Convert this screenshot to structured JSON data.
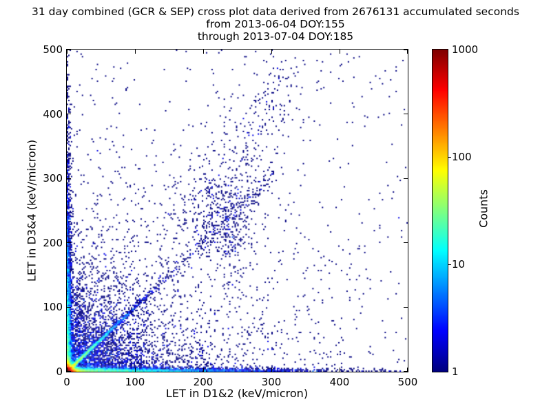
{
  "chart": {
    "title_lines": [
      "31 day combined (GCR & SEP) cross plot data derived from 2676131 accumulated seconds",
      "from 2013-06-04 DOY:155",
      "through 2013-07-04 DOY:185"
    ]
  },
  "chart_data": {
    "type": "heatmap",
    "subtype": "2d-histogram cross plot of coincident LET measurements, log-color scatter",
    "title": "31 day combined (GCR & SEP) cross plot data derived from 2676131 accumulated seconds",
    "subtitle_lines": [
      "from 2013-06-04 DOY:155",
      "through 2013-07-04 DOY:185"
    ],
    "xlabel": "LET in D1&2 (keV/micron)",
    "ylabel": "LET in D3&4 (keV/micron)",
    "xlim": [
      0,
      500
    ],
    "ylim": [
      0,
      500
    ],
    "x_ticks": [
      0,
      100,
      200,
      300,
      400,
      500
    ],
    "y_ticks": [
      0,
      100,
      200,
      300,
      400,
      500
    ],
    "grid": false,
    "tick_direction": "in",
    "colorbar": {
      "label": "Counts",
      "scale": "log",
      "range": [
        1,
        1000
      ],
      "ticks": [
        1000,
        100,
        10,
        1
      ],
      "colormap": "jet"
    },
    "stats_shown_in_title": {
      "span_days": 31,
      "accumulated_seconds": 2676131,
      "date_from": "2013-06-04",
      "doy_from": 155,
      "date_through": "2013-07-04",
      "doy_through": 185
    },
    "bin_size_kev_per_micron": 2,
    "render": {
      "seed": 20130604,
      "marker_px": 2
    },
    "density_components": [
      {
        "desc": "origin hotspot, counts up to ~1000 (dark red core fading through orange/yellow/green)",
        "type": "exp2d",
        "n": 12000,
        "mean_x": 3.5,
        "mean_y": 3.5
      },
      {
        "desc": "cyan y=x coincidence streak from origin to ~(60,60)",
        "type": "diag_exp",
        "n": 3000,
        "mean_t": 28,
        "sigma": 1.3
      },
      {
        "desc": "dense blue band hugging x-axis across full range",
        "type": "band_x",
        "n": 4500,
        "mean_x": 100,
        "sigma_y": 3
      },
      {
        "desc": "dense blue band hugging y-axis up to ~300",
        "type": "band_y",
        "n": 3500,
        "mean_y": 90,
        "sigma_x": 3
      },
      {
        "desc": "diffuse blue scatter filling lower-left region",
        "type": "exp2d",
        "n": 3200,
        "mean_x": 55,
        "mean_y": 50
      },
      {
        "desc": "wide sparse diffuse scatter",
        "type": "exp2d",
        "n": 1200,
        "mean_x": 140,
        "mean_y": 120
      },
      {
        "desc": "secondary diagonal cluster near (232,236)",
        "type": "gauss",
        "n": 260,
        "cx": 232,
        "cy": 236,
        "sx": 26,
        "sy": 28
      },
      {
        "desc": "steep band rising from cluster toward (320,475)",
        "type": "line_band",
        "n": 300,
        "x0": 225,
        "y0": 235,
        "x1": 320,
        "y1": 475,
        "sx": 24,
        "sy": 28
      },
      {
        "desc": "band segment from (150,165) to (235,330)",
        "type": "line_band",
        "n": 150,
        "x0": 150,
        "y0": 165,
        "x1": 235,
        "y1": 330,
        "sx": 30,
        "sy": 40
      },
      {
        "desc": "vertical trail below cluster near x=237",
        "type": "gauss",
        "n": 70,
        "cx": 237,
        "cy": 175,
        "sx": 9,
        "sy": 38
      },
      {
        "desc": "sparse continuation of y=x line to ~(310,310)",
        "type": "diag_uniform",
        "n": 220,
        "t0": 50,
        "t1": 310,
        "sigma": 5
      },
      {
        "desc": "isolated single-count events over whole plane",
        "type": "uniform",
        "n": 430,
        "x0": 0,
        "x1": 500,
        "y0": 0,
        "y1": 500
      }
    ]
  },
  "colors": {
    "background": "#ffffff",
    "axis": "#000000",
    "text": "#000000",
    "count_1": "#000080",
    "count_max": "#800000"
  }
}
